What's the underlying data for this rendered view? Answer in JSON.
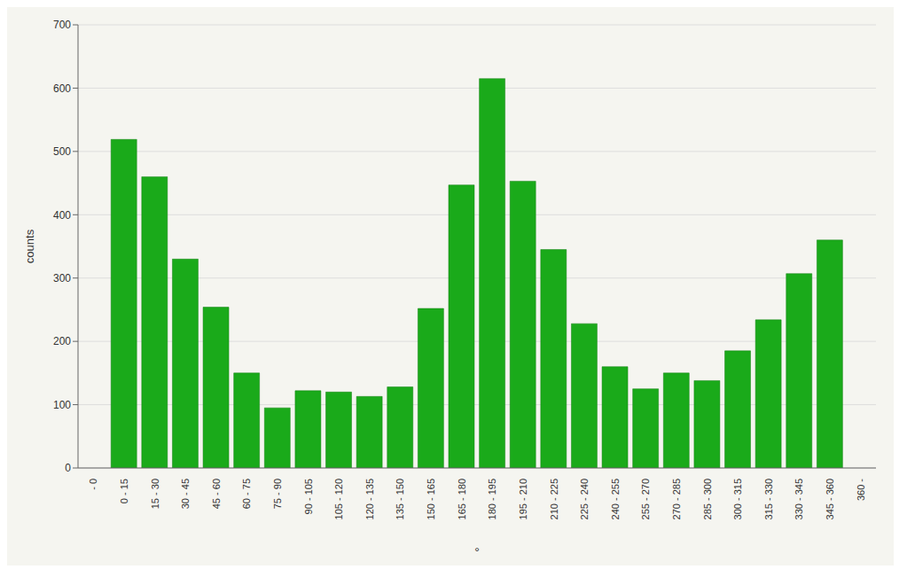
{
  "chart_data": {
    "type": "bar",
    "categories": [
      "- 0",
      "0 - 15",
      "15 - 30",
      "30 - 45",
      "45 - 60",
      "60 - 75",
      "75 - 90",
      "90 - 105",
      "105 - 120",
      "120 - 135",
      "135 - 150",
      "150 - 165",
      "165 - 180",
      "180 - 195",
      "195 - 210",
      "210 - 225",
      "225 - 240",
      "240 - 255",
      "255 - 270",
      "270 - 285",
      "285 - 300",
      "300 - 315",
      "315 - 330",
      "330 - 345",
      "345 - 360",
      "360 -"
    ],
    "values": [
      0,
      519,
      460,
      330,
      254,
      150,
      95,
      122,
      120,
      113,
      128,
      252,
      447,
      615,
      453,
      345,
      228,
      160,
      125,
      150,
      138,
      185,
      234,
      307,
      360,
      0
    ],
    "color": "#1aaa1a",
    "xlabel": "°",
    "ylabel": "counts",
    "ylim": [
      0,
      700
    ],
    "yticks": [
      0,
      100,
      200,
      300,
      400,
      500,
      600,
      700
    ],
    "grid": true
  }
}
